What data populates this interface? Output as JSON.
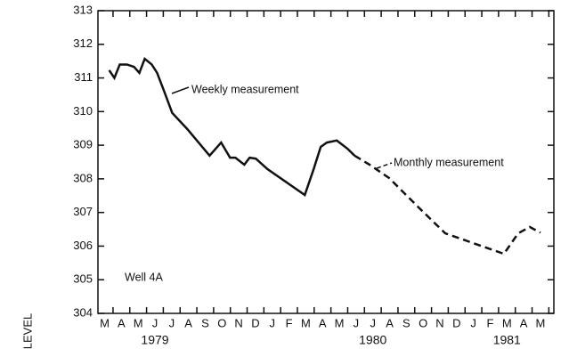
{
  "chart_data": {
    "type": "line",
    "y_axis_label": "LEVEL",
    "categories": [
      "M",
      "A",
      "M",
      "J",
      "J",
      "A",
      "S",
      "O",
      "N",
      "D",
      "J",
      "F",
      "M",
      "A",
      "M",
      "J",
      "J",
      "A",
      "S",
      "O",
      "N",
      "D",
      "J",
      "F",
      "M",
      "A",
      "M"
    ],
    "year_labels": [
      "1979",
      "1980",
      "1981"
    ],
    "annotations": [
      "Weekly measurement",
      "Monthly measurement",
      "Well 4A"
    ],
    "xlim": [
      -0.4,
      26.8
    ],
    "ylim": [
      304,
      313
    ],
    "yticks": [
      304,
      305,
      306,
      307,
      308,
      309,
      310,
      311,
      312,
      313
    ],
    "series": [
      {
        "name": "Weekly measurement",
        "color": "#111",
        "dash": false,
        "x": [
          0.27,
          0.58,
          0.9,
          1.33,
          1.75,
          2.07,
          2.39,
          2.81,
          3.13,
          3.5,
          4.03,
          4.93,
          6.26,
          6.95,
          7.48,
          7.8,
          8.33,
          8.65,
          9.02,
          9.71,
          11.94,
          12.47,
          12.89,
          13.26,
          13.85,
          14.48,
          14.91
        ],
        "values": [
          311.23,
          311.0,
          311.4,
          311.4,
          311.33,
          311.15,
          311.57,
          311.4,
          311.15,
          310.67,
          309.96,
          309.48,
          308.69,
          309.08,
          308.63,
          308.63,
          308.42,
          308.63,
          308.6,
          308.29,
          307.52,
          308.29,
          308.95,
          309.08,
          309.14,
          308.9,
          308.69
        ]
      },
      {
        "name": "Monthly measurement",
        "color": "#111",
        "dash": true,
        "x": [
          14.91,
          15.81,
          16.98,
          18.73,
          20.32,
          23.82,
          24.67,
          25.36,
          26.0
        ],
        "values": [
          308.69,
          308.42,
          308.02,
          307.15,
          306.38,
          305.77,
          306.38,
          306.57,
          306.4
        ]
      }
    ]
  }
}
